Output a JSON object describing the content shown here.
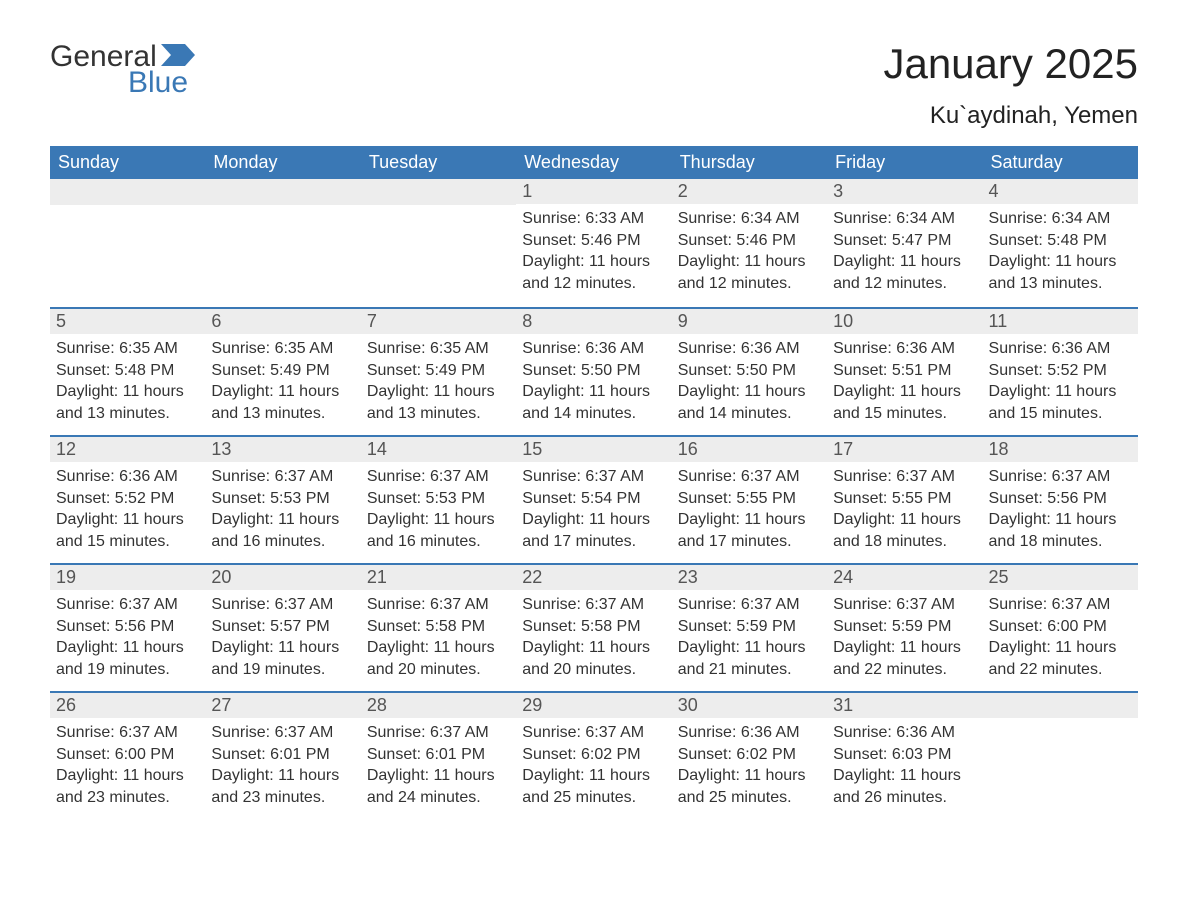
{
  "logo": {
    "general": "General",
    "blue": "Blue",
    "flag_color": "#3a78b5"
  },
  "title": "January 2025",
  "subtitle": "Ku`aydinah, Yemen",
  "colors": {
    "header_bg": "#3a78b5",
    "header_text": "#ffffff",
    "daynum_bg": "#ededed",
    "row_border": "#3a78b5",
    "body_text": "#333333",
    "page_bg": "#ffffff"
  },
  "fontsize": {
    "title": 42,
    "subtitle": 24,
    "weekday": 18,
    "daynum": 18,
    "body": 16
  },
  "weekdays": [
    "Sunday",
    "Monday",
    "Tuesday",
    "Wednesday",
    "Thursday",
    "Friday",
    "Saturday"
  ],
  "weeks": [
    [
      null,
      null,
      null,
      {
        "n": "1",
        "sunrise": "6:33 AM",
        "sunset": "5:46 PM",
        "daylight": "11 hours and 12 minutes."
      },
      {
        "n": "2",
        "sunrise": "6:34 AM",
        "sunset": "5:46 PM",
        "daylight": "11 hours and 12 minutes."
      },
      {
        "n": "3",
        "sunrise": "6:34 AM",
        "sunset": "5:47 PM",
        "daylight": "11 hours and 12 minutes."
      },
      {
        "n": "4",
        "sunrise": "6:34 AM",
        "sunset": "5:48 PM",
        "daylight": "11 hours and 13 minutes."
      }
    ],
    [
      {
        "n": "5",
        "sunrise": "6:35 AM",
        "sunset": "5:48 PM",
        "daylight": "11 hours and 13 minutes."
      },
      {
        "n": "6",
        "sunrise": "6:35 AM",
        "sunset": "5:49 PM",
        "daylight": "11 hours and 13 minutes."
      },
      {
        "n": "7",
        "sunrise": "6:35 AM",
        "sunset": "5:49 PM",
        "daylight": "11 hours and 13 minutes."
      },
      {
        "n": "8",
        "sunrise": "6:36 AM",
        "sunset": "5:50 PM",
        "daylight": "11 hours and 14 minutes."
      },
      {
        "n": "9",
        "sunrise": "6:36 AM",
        "sunset": "5:50 PM",
        "daylight": "11 hours and 14 minutes."
      },
      {
        "n": "10",
        "sunrise": "6:36 AM",
        "sunset": "5:51 PM",
        "daylight": "11 hours and 15 minutes."
      },
      {
        "n": "11",
        "sunrise": "6:36 AM",
        "sunset": "5:52 PM",
        "daylight": "11 hours and 15 minutes."
      }
    ],
    [
      {
        "n": "12",
        "sunrise": "6:36 AM",
        "sunset": "5:52 PM",
        "daylight": "11 hours and 15 minutes."
      },
      {
        "n": "13",
        "sunrise": "6:37 AM",
        "sunset": "5:53 PM",
        "daylight": "11 hours and 16 minutes."
      },
      {
        "n": "14",
        "sunrise": "6:37 AM",
        "sunset": "5:53 PM",
        "daylight": "11 hours and 16 minutes."
      },
      {
        "n": "15",
        "sunrise": "6:37 AM",
        "sunset": "5:54 PM",
        "daylight": "11 hours and 17 minutes."
      },
      {
        "n": "16",
        "sunrise": "6:37 AM",
        "sunset": "5:55 PM",
        "daylight": "11 hours and 17 minutes."
      },
      {
        "n": "17",
        "sunrise": "6:37 AM",
        "sunset": "5:55 PM",
        "daylight": "11 hours and 18 minutes."
      },
      {
        "n": "18",
        "sunrise": "6:37 AM",
        "sunset": "5:56 PM",
        "daylight": "11 hours and 18 minutes."
      }
    ],
    [
      {
        "n": "19",
        "sunrise": "6:37 AM",
        "sunset": "5:56 PM",
        "daylight": "11 hours and 19 minutes."
      },
      {
        "n": "20",
        "sunrise": "6:37 AM",
        "sunset": "5:57 PM",
        "daylight": "11 hours and 19 minutes."
      },
      {
        "n": "21",
        "sunrise": "6:37 AM",
        "sunset": "5:58 PM",
        "daylight": "11 hours and 20 minutes."
      },
      {
        "n": "22",
        "sunrise": "6:37 AM",
        "sunset": "5:58 PM",
        "daylight": "11 hours and 20 minutes."
      },
      {
        "n": "23",
        "sunrise": "6:37 AM",
        "sunset": "5:59 PM",
        "daylight": "11 hours and 21 minutes."
      },
      {
        "n": "24",
        "sunrise": "6:37 AM",
        "sunset": "5:59 PM",
        "daylight": "11 hours and 22 minutes."
      },
      {
        "n": "25",
        "sunrise": "6:37 AM",
        "sunset": "6:00 PM",
        "daylight": "11 hours and 22 minutes."
      }
    ],
    [
      {
        "n": "26",
        "sunrise": "6:37 AM",
        "sunset": "6:00 PM",
        "daylight": "11 hours and 23 minutes."
      },
      {
        "n": "27",
        "sunrise": "6:37 AM",
        "sunset": "6:01 PM",
        "daylight": "11 hours and 23 minutes."
      },
      {
        "n": "28",
        "sunrise": "6:37 AM",
        "sunset": "6:01 PM",
        "daylight": "11 hours and 24 minutes."
      },
      {
        "n": "29",
        "sunrise": "6:37 AM",
        "sunset": "6:02 PM",
        "daylight": "11 hours and 25 minutes."
      },
      {
        "n": "30",
        "sunrise": "6:36 AM",
        "sunset": "6:02 PM",
        "daylight": "11 hours and 25 minutes."
      },
      {
        "n": "31",
        "sunrise": "6:36 AM",
        "sunset": "6:03 PM",
        "daylight": "11 hours and 26 minutes."
      },
      null
    ]
  ],
  "labels": {
    "sunrise": "Sunrise: ",
    "sunset": "Sunset: ",
    "daylight": "Daylight: "
  }
}
